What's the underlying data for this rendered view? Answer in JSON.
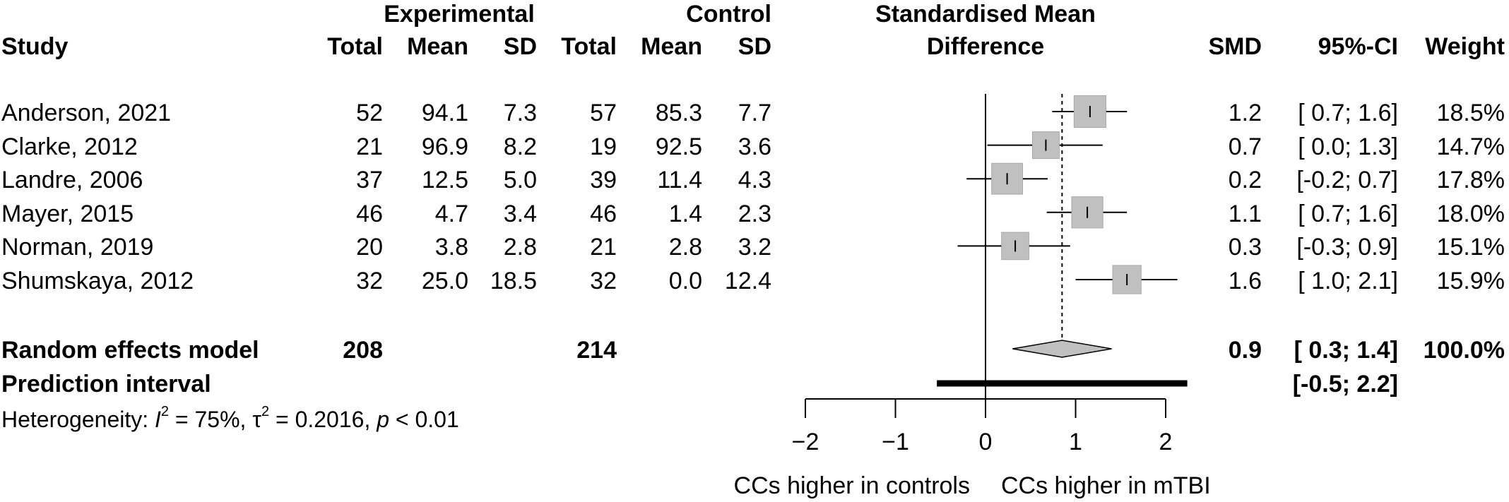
{
  "headers": {
    "group1": "Experimental",
    "group2": "Control",
    "smd_title_1": "Standardised Mean",
    "smd_title_2": "Difference",
    "study": "Study",
    "total": "Total",
    "mean": "Mean",
    "sd": "SD",
    "smd": "SMD",
    "ci": "95%-CI",
    "weight": "Weight"
  },
  "studies": [
    {
      "study": "Anderson, 2021",
      "e_total": "52",
      "e_mean": "94.1",
      "e_sd": "7.3",
      "c_total": "57",
      "c_mean": "85.3",
      "c_sd": "7.7",
      "smd": "1.2",
      "ci": "[ 0.7; 1.6]",
      "weight": "18.5%"
    },
    {
      "study": "Clarke, 2012",
      "e_total": "21",
      "e_mean": "96.9",
      "e_sd": "8.2",
      "c_total": "19",
      "c_mean": "92.5",
      "c_sd": "3.6",
      "smd": "0.7",
      "ci": "[ 0.0; 1.3]",
      "weight": "14.7%"
    },
    {
      "study": "Landre, 2006",
      "e_total": "37",
      "e_mean": "12.5",
      "e_sd": "5.0",
      "c_total": "39",
      "c_mean": "11.4",
      "c_sd": "4.3",
      "smd": "0.2",
      "ci": "[-0.2; 0.7]",
      "weight": "17.8%"
    },
    {
      "study": "Mayer, 2015",
      "e_total": "46",
      "e_mean": "4.7",
      "e_sd": "3.4",
      "c_total": "46",
      "c_mean": "1.4",
      "c_sd": "2.3",
      "smd": "1.1",
      "ci": "[ 0.7; 1.6]",
      "weight": "18.0%"
    },
    {
      "study": "Norman, 2019",
      "e_total": "20",
      "e_mean": "3.8",
      "e_sd": "2.8",
      "c_total": "21",
      "c_mean": "2.8",
      "c_sd": "3.2",
      "smd": "0.3",
      "ci": "[-0.3; 0.9]",
      "weight": "15.1%"
    },
    {
      "study": "Shumskaya, 2012",
      "e_total": "32",
      "e_mean": "25.0",
      "e_sd": "18.5",
      "c_total": "32",
      "c_mean": "0.0",
      "c_sd": "12.4",
      "smd": "1.6",
      "ci": "[ 1.0; 2.1]",
      "weight": "15.9%"
    }
  ],
  "pooled": {
    "label": "Random effects model",
    "e_total": "208",
    "c_total": "214",
    "smd": "0.9",
    "ci": "[ 0.3; 1.4]",
    "weight": "100.0%"
  },
  "prediction": {
    "label": "Prediction interval",
    "ci": "[-0.5; 2.2]"
  },
  "heterogeneity": {
    "prefix": "Heterogeneity: ",
    "i2_symbol": "I",
    "i2_sup": "2",
    "i2_value": " = 75%, ",
    "tau_symbol": "τ",
    "tau_sup": "2",
    "tau_value": " = 0.2016, ",
    "p_symbol": "p",
    "p_value": " < 0.01"
  },
  "colors": {
    "square_fill": "#c0c0c0",
    "square_stroke": "#a8a8a8",
    "diamond_fill": "#c0c0c0",
    "line": "#000000"
  },
  "chart_data": {
    "type": "forest",
    "x": [
      -2,
      -1,
      0,
      1,
      2
    ],
    "xtick_labels": [
      "−2",
      "−1",
      "0",
      "1",
      "2"
    ],
    "xlim": [
      -2,
      2
    ],
    "xlabel_left": "CCs higher in controls",
    "xlabel_right": "CCs higher in mTBI",
    "null_line": 0,
    "pooled_line": 0.85,
    "studies": [
      {
        "name": "Anderson, 2021",
        "est": 1.16,
        "lo": 0.74,
        "hi": 1.57,
        "weight": 18.5
      },
      {
        "name": "Clarke, 2012",
        "est": 0.67,
        "lo": 0.02,
        "hi": 1.3,
        "weight": 14.7
      },
      {
        "name": "Landre, 2006",
        "est": 0.24,
        "lo": -0.21,
        "hi": 0.69,
        "weight": 17.8
      },
      {
        "name": "Mayer, 2015",
        "est": 1.13,
        "lo": 0.68,
        "hi": 1.57,
        "weight": 18.0
      },
      {
        "name": "Norman, 2019",
        "est": 0.33,
        "lo": -0.31,
        "hi": 0.94,
        "weight": 15.1
      },
      {
        "name": "Shumskaya, 2012",
        "est": 1.57,
        "lo": 1.0,
        "hi": 2.13,
        "weight": 15.9
      }
    ],
    "pooled": {
      "est": 0.85,
      "lo": 0.3,
      "hi": 1.4
    },
    "prediction_interval": {
      "lo": -0.54,
      "hi": 2.24
    }
  }
}
